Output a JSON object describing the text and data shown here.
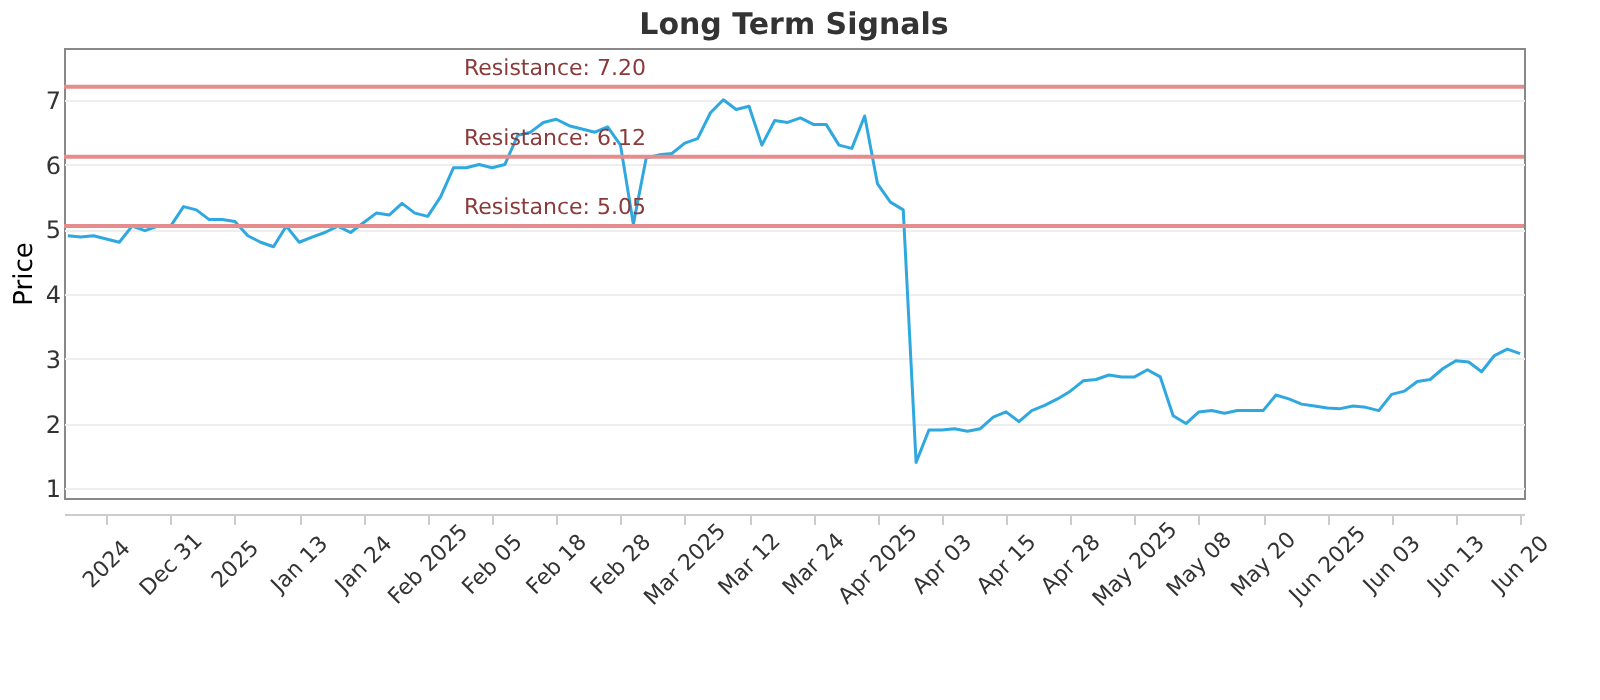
{
  "chart_data": {
    "type": "line",
    "title": "Long Term Signals",
    "ylabel": "Price",
    "categories": [
      null,
      null,
      null,
      "2024",
      null,
      null,
      null,
      null,
      "Dec 31",
      null,
      null,
      null,
      null,
      "2025",
      null,
      null,
      null,
      null,
      "Jan 13",
      null,
      null,
      null,
      null,
      "Jan 24",
      null,
      null,
      null,
      null,
      "Feb 2025",
      null,
      null,
      null,
      null,
      "Feb 05",
      null,
      null,
      null,
      null,
      "Feb 18",
      null,
      null,
      null,
      null,
      "Feb 28",
      null,
      null,
      null,
      null,
      "Mar 2025",
      null,
      null,
      null,
      null,
      "Mar 12",
      null,
      null,
      null,
      null,
      "Mar 24",
      null,
      null,
      null,
      null,
      "Apr 2025",
      null,
      null,
      null,
      null,
      "Apr 03",
      null,
      null,
      null,
      null,
      "Apr 15",
      null,
      null,
      null,
      null,
      "Apr 28",
      null,
      null,
      null,
      null,
      "May 2025",
      null,
      null,
      null,
      null,
      "May 08",
      null,
      null,
      null,
      null,
      "May 20",
      null,
      null,
      null,
      null,
      "Jun 2025",
      null,
      null,
      null,
      null,
      "Jun 03",
      null,
      null,
      null,
      null,
      "Jun 13",
      null,
      null,
      null,
      null,
      "Jun 20"
    ],
    "series": [
      {
        "color": "#2fa8e0",
        "values": [
          4.9,
          4.88,
          4.9,
          4.85,
          4.8,
          5.05,
          4.98,
          5.05,
          5.05,
          5.35,
          5.3,
          5.15,
          5.15,
          5.12,
          4.9,
          4.8,
          4.73,
          5.05,
          4.8,
          4.88,
          4.95,
          5.05,
          4.95,
          5.1,
          5.25,
          5.22,
          5.4,
          5.25,
          5.2,
          5.5,
          5.95,
          5.95,
          6.0,
          5.95,
          6.0,
          6.45,
          6.5,
          6.65,
          6.7,
          6.6,
          6.55,
          6.5,
          6.58,
          6.3,
          5.08,
          6.1,
          6.15,
          6.17,
          6.33,
          6.4,
          6.8,
          7.0,
          6.85,
          6.9,
          6.3,
          6.68,
          6.65,
          6.72,
          6.62,
          6.62,
          6.3,
          6.25,
          6.75,
          5.7,
          5.42,
          5.3,
          1.4,
          1.9,
          1.9,
          1.92,
          1.88,
          1.92,
          2.1,
          2.18,
          2.03,
          2.2,
          2.28,
          2.38,
          2.5,
          2.66,
          2.68,
          2.75,
          2.72,
          2.72,
          2.83,
          2.72,
          2.12,
          2.0,
          2.18,
          2.2,
          2.16,
          2.2,
          2.2,
          2.2,
          2.44,
          2.38,
          2.3,
          2.27,
          2.24,
          2.23,
          2.27,
          2.25,
          2.2,
          2.45,
          2.5,
          2.65,
          2.68,
          2.85,
          2.97,
          2.95,
          2.8,
          3.05,
          3.15,
          3.08
        ]
      }
    ],
    "ylim": [
      0.85,
      7.8
    ],
    "yticks": [
      1,
      2,
      3,
      4,
      5,
      6,
      7
    ],
    "grid": "y",
    "marker": "none",
    "line_style": "solid",
    "ref_lines": [
      {
        "axis": "y",
        "value": 7.2,
        "label": "Resistance: 7.20",
        "color": "#e58c8c"
      },
      {
        "axis": "y",
        "value": 6.12,
        "label": "Resistance: 6.12",
        "color": "#e58c8c"
      },
      {
        "axis": "y",
        "value": 5.05,
        "label": "Resistance: 5.05",
        "color": "#e58c8c"
      }
    ]
  }
}
